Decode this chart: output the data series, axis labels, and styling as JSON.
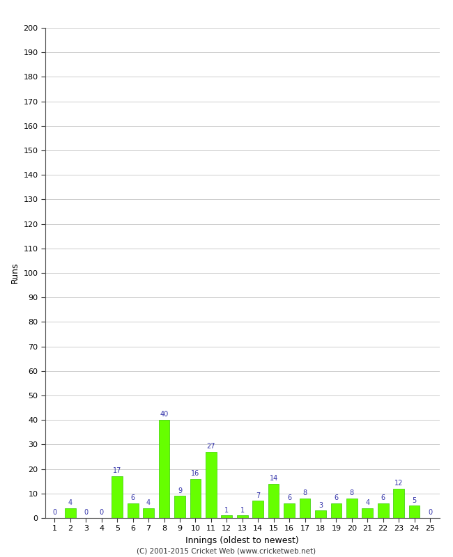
{
  "xlabel": "Innings (oldest to newest)",
  "ylabel": "Runs",
  "values": [
    0,
    4,
    0,
    0,
    17,
    6,
    4,
    40,
    9,
    16,
    27,
    1,
    1,
    7,
    14,
    6,
    8,
    3,
    6,
    8,
    4,
    6,
    12,
    5,
    0
  ],
  "innings": [
    1,
    2,
    3,
    4,
    5,
    6,
    7,
    8,
    9,
    10,
    11,
    12,
    13,
    14,
    15,
    16,
    17,
    18,
    19,
    20,
    21,
    22,
    23,
    24,
    25
  ],
  "bar_color": "#66ff00",
  "bar_edge_color": "#33cc00",
  "label_color": "#3333aa",
  "ylim": [
    0,
    200
  ],
  "ytick_interval": 10,
  "background_color": "#ffffff",
  "grid_color": "#cccccc",
  "footer": "(C) 2001-2015 Cricket Web (www.cricketweb.net)",
  "tick_color": "#333333",
  "spine_color": "#555555"
}
